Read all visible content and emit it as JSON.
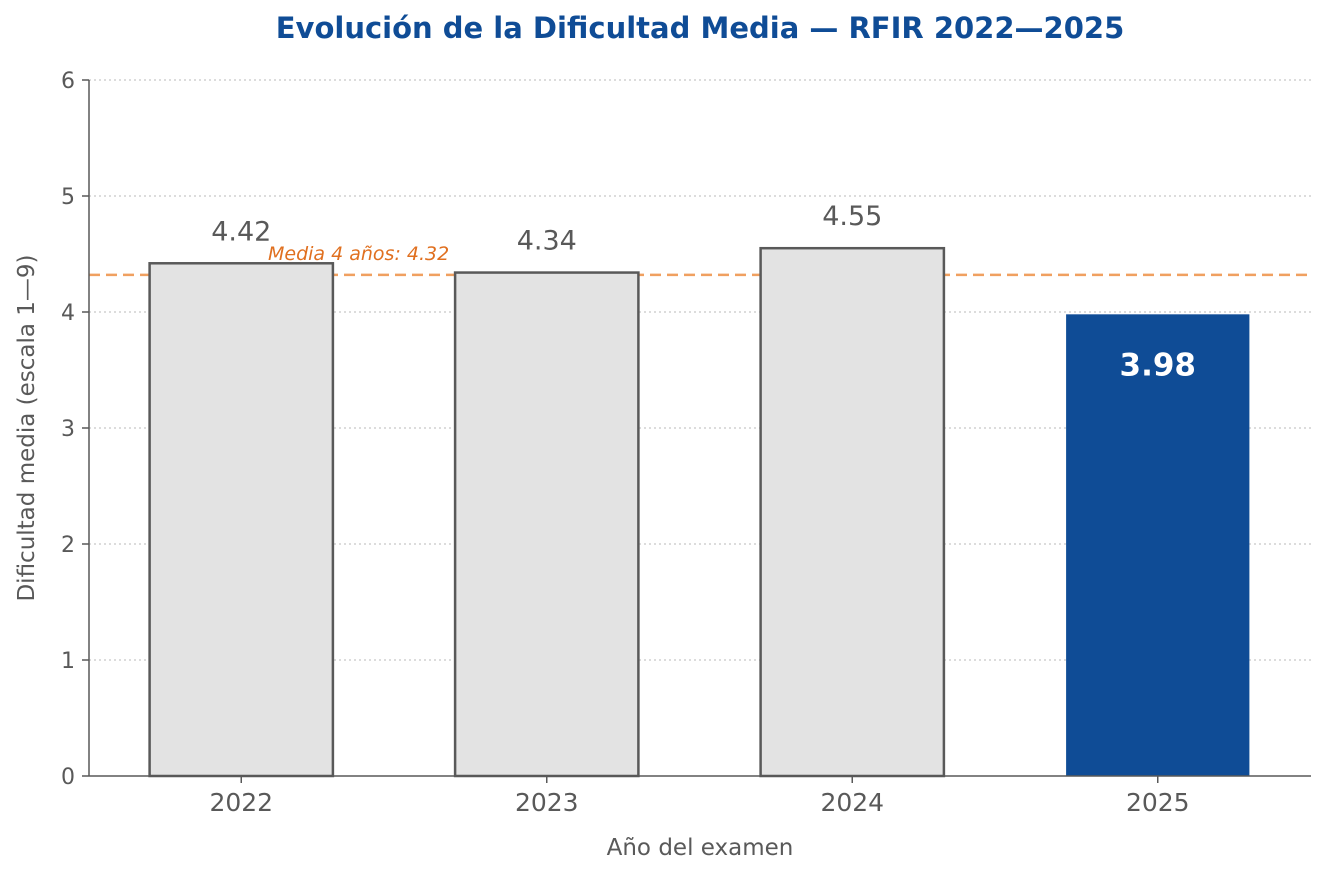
{
  "chart_data": {
    "type": "bar",
    "title": "Evolución de la Dificultad Media — RFIR 2022—2025",
    "xlabel": "Año del examen",
    "ylabel": "Dificultad media (escala 1—9)",
    "categories": [
      "2022",
      "2023",
      "2024",
      "2025"
    ],
    "values": [
      4.42,
      4.34,
      4.55,
      3.98
    ],
    "value_labels": [
      "4.42",
      "4.34",
      "4.55",
      "3.98"
    ],
    "highlight_index": 3,
    "ylim": [
      0,
      6
    ],
    "yticks": [
      0,
      1,
      2,
      3,
      4,
      5,
      6
    ],
    "grid": "horizontal dotted",
    "reference_line": {
      "value": 4.32,
      "label": "Media 4 años: 4.32",
      "style": "dashed"
    },
    "colors": {
      "title": "#0f4c96",
      "bar_fill": "#e3e3e3",
      "bar_edge": "#595959",
      "highlight_fill": "#0f4c96",
      "reference_line": "#f0a060",
      "reference_label": "#e07020",
      "grid": "#c8c8c8",
      "axis": "#595959"
    }
  }
}
